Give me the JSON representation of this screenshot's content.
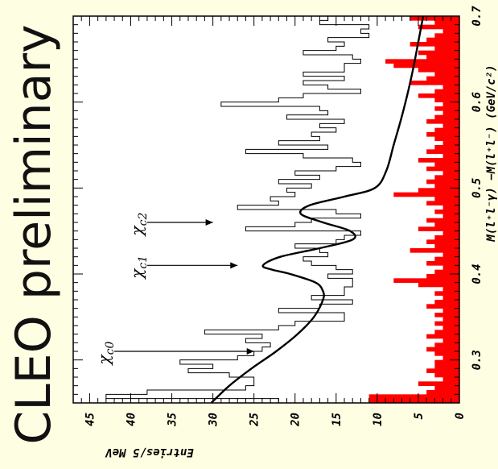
{
  "side_title": "CLEO preliminary",
  "chart_data": {
    "type": "bar",
    "orientation": "rotated 90° counter-clockwise (x axis runs bottom→top, y axis runs left→right)",
    "xlabel": "M(l⁺l⁻γ) −M(l⁺l⁻)  (GeV/c²)",
    "ylabel": "Entries/5 MeV",
    "xlim": [
      0.25,
      0.7
    ],
    "ylim": [
      0,
      47
    ],
    "x_ticks": [
      "0.3",
      "0.4",
      "0.5",
      "0.6",
      "0.7"
    ],
    "y_ticks": [
      "0",
      "5",
      "10",
      "15",
      "20",
      "25",
      "30",
      "35",
      "40",
      "45"
    ],
    "bin_width": 0.005,
    "x_start": 0.25,
    "series": [
      {
        "values": [
          22,
          43,
          38,
          26,
          25,
          25,
          28,
          33,
          30,
          34,
          27,
          25,
          24,
          23,
          26,
          24,
          31,
          22,
          20,
          14,
          14,
          22,
          17,
          13,
          18,
          14,
          14,
          13,
          13,
          16,
          13,
          15,
          18,
          19,
          16,
          17,
          20,
          15,
          14,
          12,
          26,
          20,
          18,
          12,
          15,
          27,
          22,
          23,
          20,
          21,
          18,
          22,
          17,
          20,
          15,
          12,
          13,
          19,
          26,
          16,
          22,
          17,
          18,
          15,
          17,
          14,
          21,
          16,
          17,
          29,
          22,
          19,
          12,
          16,
          19,
          14,
          19,
          14,
          14,
          12,
          13,
          19,
          15,
          14,
          16,
          11,
          12,
          11,
          17,
          16,
          15,
          10,
          14,
          12,
          9,
          11,
          10,
          9,
          11,
          15,
          9,
          7,
          11,
          6,
          11,
          10,
          13,
          8,
          11,
          7,
          9,
          10,
          8,
          13,
          7,
          7,
          10,
          5,
          5,
          7,
          8,
          8,
          5,
          8,
          6,
          10,
          7,
          7,
          5,
          6,
          9,
          3,
          6,
          7,
          9,
          5,
          6,
          5,
          9,
          5,
          2,
          2,
          3,
          6,
          3,
          2,
          6,
          2,
          3,
          3,
          3,
          2,
          3,
          4,
          4,
          3,
          4,
          2,
          2,
          3,
          2,
          3,
          2,
          4,
          3,
          2,
          3,
          2,
          3,
          2,
          2,
          3,
          4,
          2,
          3,
          2,
          2,
          3,
          2,
          3
        ]
      },
      {
        "values": [
          11,
          11,
          4,
          3,
          5,
          2,
          3,
          4,
          3,
          3,
          2,
          3,
          4,
          3,
          2,
          4,
          3,
          2,
          3,
          2,
          3,
          2,
          4,
          3,
          2,
          3,
          2,
          5,
          8,
          4,
          3,
          2,
          4,
          3,
          2,
          6,
          3,
          4,
          3,
          2,
          5,
          3,
          4,
          2,
          3,
          2,
          4,
          3,
          8,
          5,
          3,
          4,
          3,
          2,
          4,
          3,
          5,
          2,
          4,
          3,
          2,
          3,
          4,
          3,
          2,
          4,
          3,
          2,
          3,
          2,
          3,
          5,
          3,
          2,
          6,
          4,
          3,
          5,
          8,
          9,
          4,
          5,
          3,
          6,
          4,
          3,
          2,
          5,
          3,
          6,
          4,
          3,
          5,
          3,
          2,
          4,
          3,
          5,
          6,
          4,
          3,
          2,
          4,
          3,
          2,
          5,
          4,
          3,
          2,
          6,
          4,
          2,
          3,
          4,
          3,
          2,
          4,
          3,
          5,
          4,
          3,
          4,
          3,
          2,
          4,
          3,
          3,
          2,
          4,
          3,
          3,
          3,
          3,
          2,
          3,
          2,
          2,
          3,
          2,
          3,
          2,
          3,
          3,
          2,
          2,
          2,
          3,
          2,
          3,
          3,
          2,
          3,
          3,
          2,
          3,
          2,
          3,
          2,
          2,
          3,
          4,
          2,
          3,
          2,
          2,
          3,
          2,
          3,
          3,
          2,
          3,
          2,
          2,
          2,
          2,
          3,
          2,
          2,
          2,
          2
        ]
      }
    ],
    "fit_curve": {
      "x": [
        0.25,
        0.27,
        0.29,
        0.31,
        0.33,
        0.35,
        0.37,
        0.38,
        0.39,
        0.4,
        0.405,
        0.41,
        0.42,
        0.43,
        0.44,
        0.45,
        0.46,
        0.47,
        0.48,
        0.49,
        0.5,
        0.52,
        0.55,
        0.58,
        0.61,
        0.64,
        0.67,
        0.7
      ],
      "y": [
        30.2,
        28.0,
        25.3,
        22.3,
        19.7,
        17.7,
        16.6,
        16.6,
        17.5,
        20.6,
        22.8,
        23.9,
        21.8,
        17.0,
        13.0,
        13.3,
        16.6,
        19.3,
        18.2,
        14.0,
        10.3,
        8.9,
        8.0,
        7.1,
        6.3,
        5.6,
        5.0,
        4.4
      ]
    },
    "annotations": [
      {
        "label": "χ",
        "sub": "c0",
        "arrow_to_x": 0.31,
        "arrow_y_start": 42,
        "arrow_y_end": 25
      },
      {
        "label": "χ",
        "sub": "c1",
        "arrow_to_x": 0.41,
        "arrow_y_start": 38,
        "arrow_y_end": 27
      },
      {
        "label": "χ",
        "sub": "c2",
        "arrow_to_x": 0.46,
        "arrow_y_start": 38,
        "arrow_y_end": 30
      }
    ],
    "colors": {
      "background": "#fefee2",
      "frame": "#000000",
      "filled_series": "#ff0000",
      "curve": "#000000"
    }
  }
}
